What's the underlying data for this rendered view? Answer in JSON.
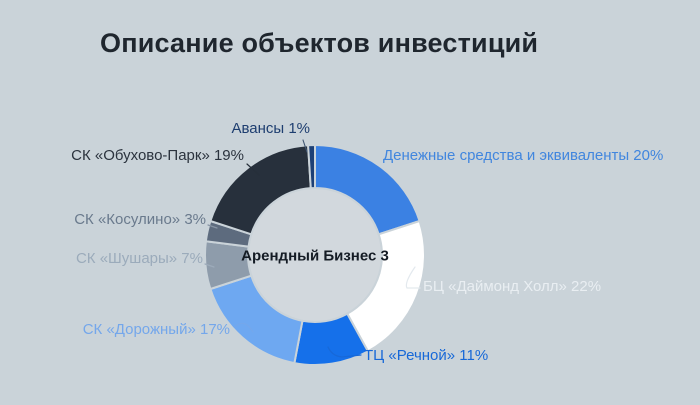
{
  "header": {
    "title": "Описание объектов инвестиций"
  },
  "chart_data": {
    "type": "pie",
    "subtype": "donut",
    "title": "Описание объектов инвестиций",
    "center_label": "Арендный Бизнес 3",
    "unit": "%",
    "direction": "clockwise",
    "start_angle_deg": 0,
    "legend_position": "around-labels",
    "background_color": "#cad3d9",
    "hole_color": "#d2d8dd",
    "slices": [
      {
        "name": "Денежные средства и эквиваленты",
        "value": 20,
        "label": "Денежные средства и эквиваленты 20%",
        "color": "#3b81e3",
        "label_color": "#4186de"
      },
      {
        "name": "БЦ «Даймонд Холл»",
        "value": 22,
        "label": "БЦ «Даймонд Холл» 22%",
        "color": "#ffffff",
        "label_color": "#e9eef2"
      },
      {
        "name": "ТЦ «Речной»",
        "value": 11,
        "label": "ТЦ «Речной» 11%",
        "color": "#1570ea",
        "label_color": "#1768d8"
      },
      {
        "name": "СК «Дорожный»",
        "value": 17,
        "label": "СК «Дорожный» 17%",
        "color": "#6ea8f1",
        "label_color": "#74a7eb"
      },
      {
        "name": "СК «Шушары»",
        "value": 7,
        "label": "СК «Шушары» 7%",
        "color": "#8e9cab",
        "label_color": "#9babbb"
      },
      {
        "name": "СК «Косулино»",
        "value": 3,
        "label": "СК «Косулино» 3%",
        "color": "#5d6b7e",
        "label_color": "#6a7a8d"
      },
      {
        "name": "СК «Обухово-Парк»",
        "value": 19,
        "label": "СК «Обухово-Парк» 19%",
        "color": "#27303c",
        "label_color": "#2b333e"
      },
      {
        "name": "Авансы",
        "value": 1,
        "label": "Авансы 1%",
        "color": "#1d4076",
        "label_color": "#1e3e70"
      }
    ]
  }
}
